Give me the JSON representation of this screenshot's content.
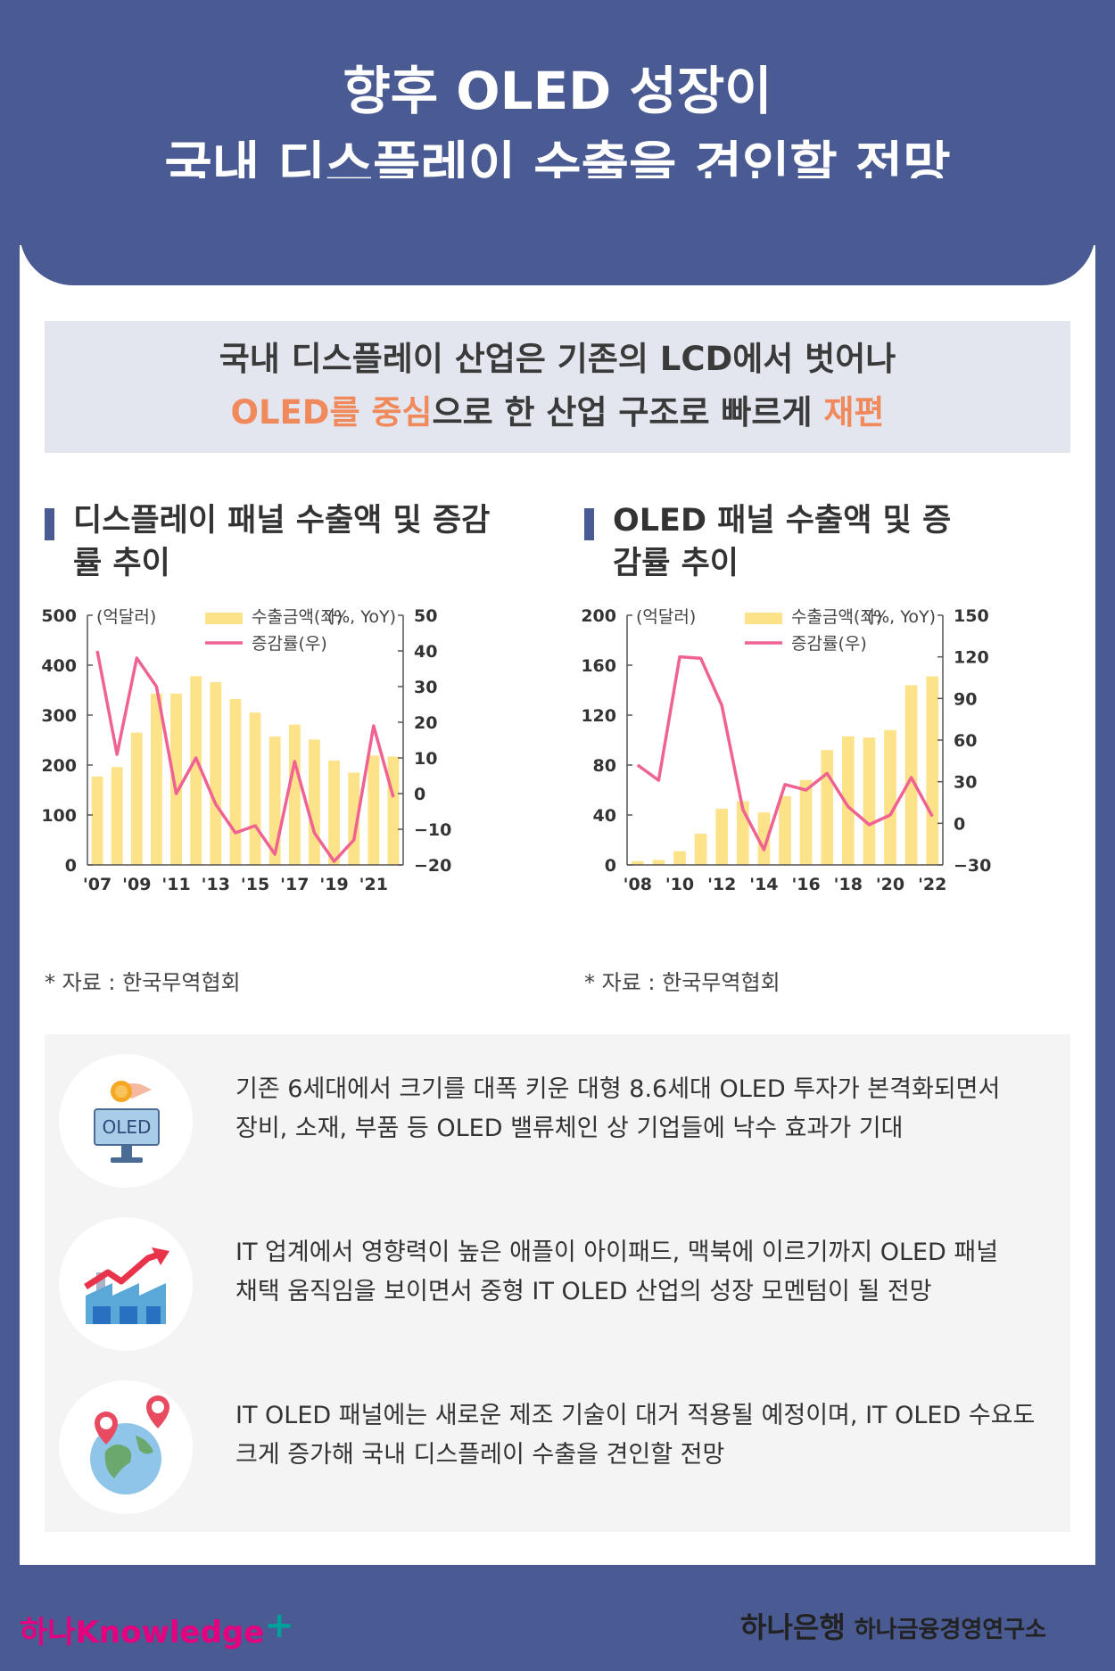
{
  "header": {
    "title_line1": "향후 OLED 성장이",
    "title_line2": "국내 디스플레이 수출을 견인할 전망"
  },
  "summary": {
    "line1": "국내 디스플레이 산업은 기존의 LCD에서 벗어나",
    "line2_accent1": "OLED를 중심",
    "line2_middle": "으로 한 산업 구조로 빠르게 ",
    "line2_accent2": "재편"
  },
  "colors": {
    "bar": "#fce38a",
    "line": "#f06292",
    "accent": "#f08a5c",
    "frame": "#4a5a92"
  },
  "chart_data": [
    {
      "type": "bar+line",
      "title": "디스플레이 패널 수출액 및 증감률 추이",
      "left_unit": "(억달러)",
      "right_unit": "(%, YoY)",
      "legend": {
        "bar": "수출금액(좌)",
        "line": "증감률(우)"
      },
      "x": [
        "'07",
        "'08",
        "'09",
        "'10",
        "'11",
        "'12",
        "'13",
        "'14",
        "'15",
        "'16",
        "'17",
        "'18",
        "'19",
        "'20",
        "'21",
        "'22"
      ],
      "x_tick_labels": [
        "'07",
        "'09",
        "'11",
        "'13",
        "'15",
        "'17",
        "'19",
        "'21"
      ],
      "left_ylim": [
        0,
        500
      ],
      "left_ticks": [
        0,
        100,
        200,
        300,
        400,
        500
      ],
      "right_ylim": [
        -20,
        50
      ],
      "right_ticks": [
        -20,
        -10,
        0,
        10,
        20,
        30,
        40,
        50
      ],
      "series": [
        {
          "name": "수출금액(좌)",
          "type": "bar",
          "axis": "left",
          "values": [
            177,
            196,
            265,
            343,
            343,
            378,
            366,
            332,
            305,
            257,
            281,
            251,
            209,
            185,
            219,
            217
          ]
        },
        {
          "name": "증감률(우)",
          "type": "line",
          "axis": "right",
          "values": [
            40,
            11,
            38,
            30,
            0,
            10,
            -3,
            -11,
            -9,
            -17,
            9,
            -11,
            -19,
            -13,
            19,
            -1
          ]
        }
      ],
      "source": "* 자료 : 한국무역협회"
    },
    {
      "type": "bar+line",
      "title": "OLED 패널 수출액 및 증감률 추이",
      "left_unit": "(억달러)",
      "right_unit": "(%, YoY)",
      "legend": {
        "bar": "수출금액(좌)",
        "line": "증감률(우)"
      },
      "x": [
        "'08",
        "'09",
        "'10",
        "'11",
        "'12",
        "'13",
        "'14",
        "'15",
        "'16",
        "'17",
        "'18",
        "'19",
        "'20",
        "'21",
        "'22"
      ],
      "x_tick_labels": [
        "'08",
        "'10",
        "'12",
        "'14",
        "'16",
        "'18",
        "'20",
        "'22"
      ],
      "left_ylim": [
        0,
        200
      ],
      "left_ticks": [
        0,
        40,
        80,
        120,
        160,
        200
      ],
      "right_ylim": [
        -30,
        150
      ],
      "right_ticks": [
        -30,
        0,
        30,
        60,
        90,
        120,
        150
      ],
      "series": [
        {
          "name": "수출금액(좌)",
          "type": "bar",
          "axis": "left",
          "values": [
            3,
            4,
            11,
            25,
            45,
            51,
            42,
            55,
            68,
            92,
            103,
            102,
            108,
            144,
            151
          ]
        },
        {
          "name": "증감률(우)",
          "type": "line",
          "axis": "right",
          "values": [
            42,
            31,
            120,
            119,
            85,
            10,
            -19,
            28,
            24,
            36,
            12,
            -1,
            6,
            33,
            5
          ]
        }
      ],
      "source": "* 자료 : 한국무역협회"
    }
  ],
  "points": [
    {
      "icon": "oled-investment-icon",
      "line1": "기존 6세대에서 크기를 대폭 키운 대형 8.6세대 OLED 투자가 본격화되면서",
      "line2": "장비, 소재, 부품 등 OLED 밸류체인 상 기업들에 낙수 효과가 기대",
      "icon_label": "OLED"
    },
    {
      "icon": "factory-growth-icon",
      "line1": "IT 업계에서 영향력이 높은 애플이 아이패드, 맥북에 이르기까지 OLED 패널",
      "line2": "채택 움직임을 보이면서 중형 IT OLED 산업의 성장 모멘텀이 될 전망"
    },
    {
      "icon": "globe-pin-icon",
      "line1": "IT OLED 패널에는 새로운 제조 기술이 대거 적용될 예정이며, IT OLED 수요도",
      "line2": "크게 증가해 국내 디스플레이 수출을 견인할 전망"
    }
  ],
  "footer": {
    "left_logo_a": "하나",
    "left_logo_b": "Knowledge",
    "left_logo_plus": "+",
    "right_bank": "하나은행",
    "right_institute": "하나금융경영연구소"
  }
}
